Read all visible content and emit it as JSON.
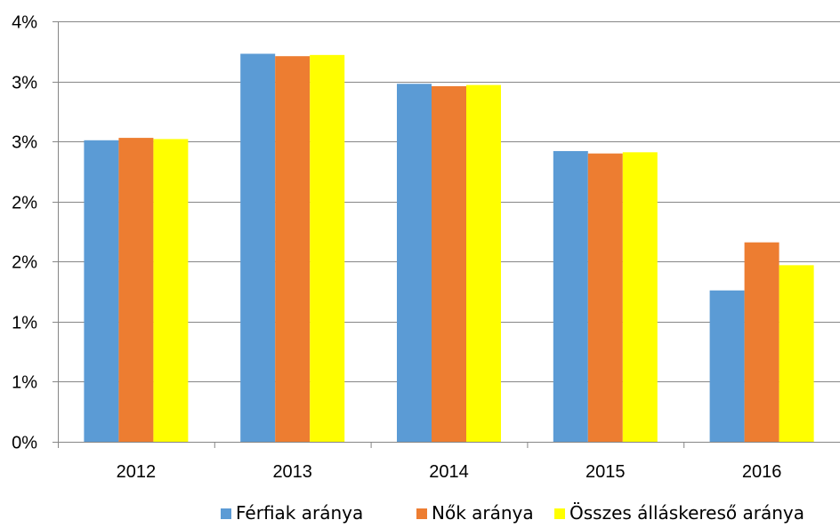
{
  "chart_data": {
    "type": "bar",
    "categories": [
      "2012",
      "2013",
      "2014",
      "2015",
      "2016"
    ],
    "series": [
      {
        "name": "Férfiak aránya",
        "color": "#5B9BD5",
        "values": [
          2.51,
          3.23,
          2.98,
          2.42,
          1.26
        ]
      },
      {
        "name": "Nők aránya",
        "color": "#ED7D31",
        "values": [
          2.53,
          3.21,
          2.96,
          2.4,
          1.66
        ]
      },
      {
        "name": "Összes álláskereső aránya",
        "color": "#FFFF00",
        "values": [
          2.52,
          3.22,
          2.97,
          2.41,
          1.47
        ]
      }
    ],
    "y_ticks": [
      {
        "value": 0,
        "label": "0%"
      },
      {
        "value": 0.5,
        "label": "1%"
      },
      {
        "value": 1,
        "label": "1%"
      },
      {
        "value": 1.5,
        "label": "2%"
      },
      {
        "value": 2,
        "label": "2%"
      },
      {
        "value": 2.5,
        "label": "3%"
      },
      {
        "value": 3,
        "label": "3%"
      },
      {
        "value": 3.5,
        "label": "4%"
      }
    ],
    "ylim": [
      0,
      3.5
    ],
    "grid": true,
    "legend_position": "bottom-right",
    "title": "",
    "xlabel": "",
    "ylabel": ""
  }
}
